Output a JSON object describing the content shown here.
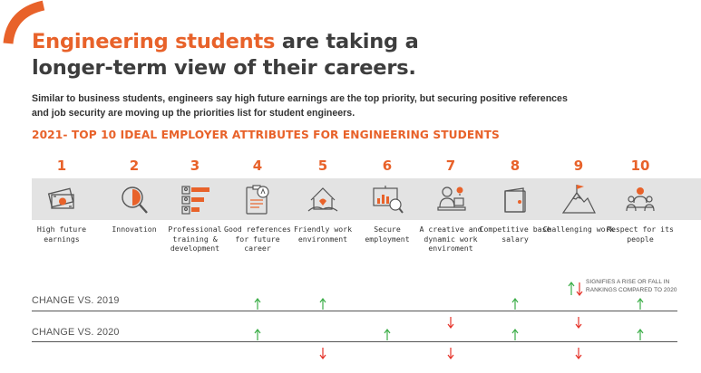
{
  "title_highlight": "Engineering students",
  "title_rest1": " are taking a",
  "title_line2": "longer-term view of their careers.",
  "subtitle": "Similar to business students, engineers say high future earnings are the top priority, but securing positive references and job security are moving up the priorities list for student engineers.",
  "section_heading": "2021- TOP 10 IDEAL EMPLOYER ATTRIBUTES FOR ENGINEERING STUDENTS",
  "colors": {
    "accent": "#e8622a",
    "rise": "#3dae49",
    "fall": "#e5332a",
    "band": "#e3e3e3"
  },
  "attributes": [
    {
      "rank": "1",
      "icon": "money-icon",
      "label": "High future earnings"
    },
    {
      "rank": "2",
      "icon": "magnifier-icon",
      "label": "Innovation"
    },
    {
      "rank": "3",
      "icon": "training-chart-icon",
      "label": "Professional training & development"
    },
    {
      "rank": "4",
      "icon": "reference-document-icon",
      "label": "Good references for future career"
    },
    {
      "rank": "5",
      "icon": "home-work-icon",
      "label": "Friendly work environment"
    },
    {
      "rank": "6",
      "icon": "presentation-icon",
      "label": "Secure employment"
    },
    {
      "rank": "7",
      "icon": "creative-worker-icon",
      "label": "A creative and dynamic work enviroment"
    },
    {
      "rank": "8",
      "icon": "wallet-icon",
      "label": "Competitive base salary"
    },
    {
      "rank": "9",
      "icon": "mountain-flag-icon",
      "label": "Challenging work"
    },
    {
      "rank": "10",
      "icon": "people-group-icon",
      "label": "Respect for its people"
    }
  ],
  "legend_line1": "SIGNIFIES A RISE OR FALL IN",
  "legend_line2": "RANKINGS COMPARED TO 2020",
  "change_2019_label": "CHANGE VS. 2019",
  "change_2020_label": "CHANGE VS. 2020",
  "change_2019": [
    "none",
    "none",
    "none",
    "up",
    "up",
    "none",
    "down",
    "up",
    "down",
    "up"
  ],
  "change_2020": [
    "none",
    "none",
    "none",
    "up",
    "down",
    "up",
    "down",
    "up",
    "down",
    "up"
  ]
}
